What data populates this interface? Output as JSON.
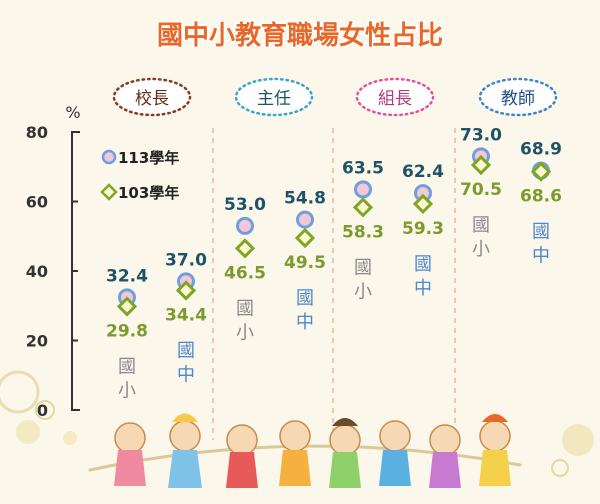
{
  "title": "國中小教育職場女性占比",
  "unit": "%",
  "colors": {
    "title": "#e8682a",
    "value113": "#1f5268",
    "value103": "#7c9a2d",
    "marker113_stroke": "#6f9fdc",
    "marker113_fill": "#f2c7d8",
    "marker103_stroke": "#7ea626",
    "marker103_fill": "#fff7cf",
    "primary_label": "#8a8a8a",
    "junior_label": "#4e86cf",
    "axis": "#333333",
    "divider": "#f0b4a4"
  },
  "chart_data": {
    "type": "scatter",
    "title": "國中小教育職場女性占比",
    "ylabel": "%",
    "ylim": [
      0,
      80
    ],
    "yticks": [
      0,
      20,
      40,
      60,
      80
    ],
    "grid": false,
    "legend_position": "top-left",
    "groups": [
      {
        "label": "校長",
        "style": "brown"
      },
      {
        "label": "主任",
        "style": "teal"
      },
      {
        "label": "組長",
        "style": "pink"
      },
      {
        "label": "教師",
        "style": "blue"
      }
    ],
    "school_levels": [
      "國小",
      "國中"
    ],
    "series": [
      {
        "name": "113學年",
        "marker": "circle",
        "values": [
          32.4,
          37.0,
          53.0,
          54.8,
          63.5,
          62.4,
          73.0,
          68.9
        ]
      },
      {
        "name": "103學年",
        "marker": "diamond",
        "values": [
          29.8,
          34.4,
          46.5,
          49.5,
          58.3,
          59.3,
          70.5,
          68.6
        ]
      }
    ]
  }
}
